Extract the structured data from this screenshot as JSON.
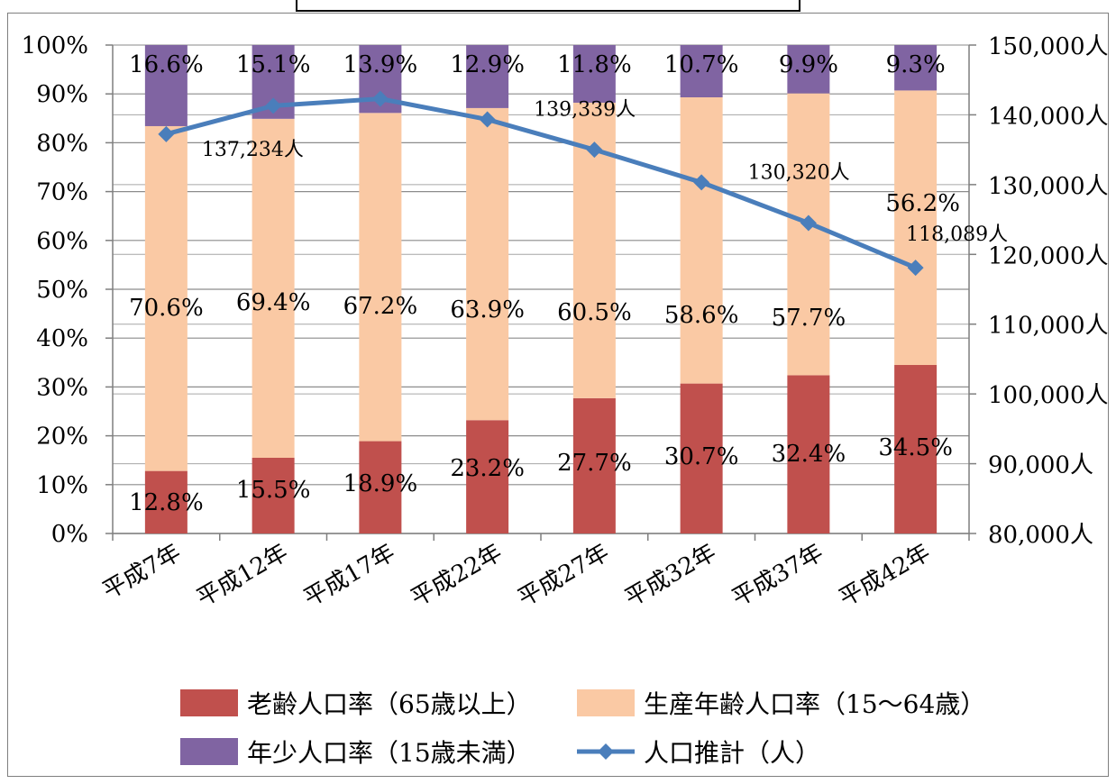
{
  "chart_data": {
    "type": "bar",
    "stacked": true,
    "categories": [
      "平成7年",
      "平成12年",
      "平成17年",
      "平成22年",
      "平成27年",
      "平成32年",
      "平成37年",
      "平成42年"
    ],
    "series": [
      {
        "name": "老齢人口率（65歳以上）",
        "color": "#c0504d",
        "values": [
          12.8,
          15.5,
          18.9,
          23.2,
          27.7,
          30.7,
          32.4,
          34.5
        ],
        "labels": [
          "12.8%",
          "15.5%",
          "18.9%",
          "23.2%",
          "27.7%",
          "30.7%",
          "32.4%",
          "34.5%"
        ]
      },
      {
        "name": "生産年齢人口率（15～64歳）",
        "color": "#fac9a4",
        "values": [
          70.6,
          69.4,
          67.2,
          63.9,
          60.5,
          58.6,
          57.7,
          56.2
        ],
        "labels": [
          "70.6%",
          "69.4%",
          "67.2%",
          "63.9%",
          "60.5%",
          "58.6%",
          "57.7%",
          "56.2%"
        ]
      },
      {
        "name": "年少人口率（15歳未満）",
        "color": "#8064a2",
        "values": [
          16.6,
          15.1,
          13.9,
          12.9,
          11.8,
          10.7,
          9.9,
          9.3
        ],
        "labels": [
          "16.6%",
          "15.1%",
          "13.9%",
          "12.9%",
          "11.8%",
          "10.7%",
          "9.9%",
          "9.3%"
        ]
      }
    ],
    "line_series": {
      "name": "人口推計（人）",
      "color": "#4a7ebb",
      "values": [
        137234,
        141300,
        142300,
        139339,
        135000,
        130320,
        124500,
        118089
      ],
      "point_labels": [
        "137,234人",
        "",
        "",
        "139,339人",
        "",
        "130,320人",
        "",
        "118,089人"
      ]
    },
    "y_left": {
      "min": 0,
      "max": 100,
      "ticks": [
        "0%",
        "10%",
        "20%",
        "30%",
        "40%",
        "50%",
        "60%",
        "70%",
        "80%",
        "90%",
        "100%"
      ]
    },
    "y_right": {
      "min": 80000,
      "max": 150000,
      "ticks": [
        "80,000人",
        "90,000人",
        "100,000人",
        "110,000人",
        "120,000人",
        "130,000人",
        "140,000人",
        "150,000人"
      ]
    },
    "grid": true,
    "legend_position": "bottom"
  }
}
